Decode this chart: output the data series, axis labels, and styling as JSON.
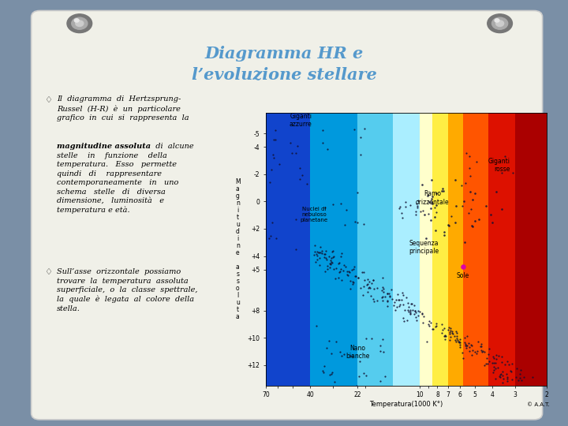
{
  "title_line1": "Diagramma HR e",
  "title_line2": "l’evoluzione stellare",
  "title_color": "#5599cc",
  "bg_slide_color": "#7a8fa6",
  "bg_paper_color": "#f0f0e8",
  "band_colors": [
    "#1144cc",
    "#0099dd",
    "#55ccee",
    "#aaeeff",
    "#ffffcc",
    "#ffee44",
    "#ffaa00",
    "#ff5500",
    "#dd1100",
    "#aa0000"
  ],
  "band_xedges": [
    70,
    40,
    22,
    14,
    10,
    8.5,
    7,
    5.8,
    4.2,
    3.0,
    2
  ],
  "diagram_xlabel": "Temperatura(1000 K°)",
  "diagram_credit": "© A.A.T.",
  "xticks": [
    70,
    40,
    22,
    10,
    8,
    7,
    6,
    5,
    4,
    3,
    2
  ],
  "yticks": [
    -5,
    -4,
    -2,
    0,
    2,
    4,
    5,
    8,
    10,
    12
  ],
  "ytick_labels": [
    "-5",
    "-4",
    "-2",
    "0",
    "+2",
    "+4",
    "+5",
    "+8",
    "+10",
    "+12"
  ],
  "dot_color": "#111133",
  "sun_color": "#dd00aa",
  "tack_color_outer": "#888888",
  "tack_color_inner": "#bbbbbb",
  "text_font_size": 7.0,
  "title_font_size": 15
}
